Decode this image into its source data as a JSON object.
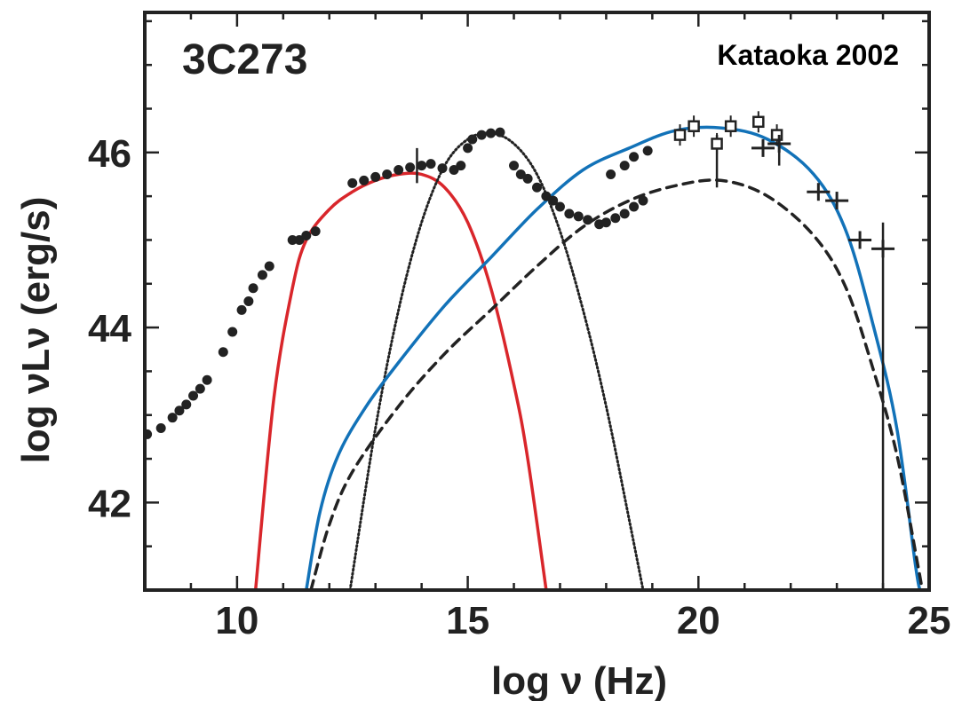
{
  "chart_data": {
    "type": "scatter",
    "title": "3C273",
    "annotation": "Kataoka 2002",
    "xlabel": "log ν (Hz)",
    "ylabel": "log νLν (erg/s)",
    "xlim": [
      8,
      25
    ],
    "ylim": [
      41,
      47.6
    ],
    "x_ticks": [
      10,
      15,
      20,
      25
    ],
    "y_ticks": [
      42,
      44,
      46
    ],
    "grid": false,
    "colors": {
      "red": "#d9262b",
      "blue": "#1272b8",
      "black": "#222222"
    },
    "series": [
      {
        "kind": "data",
        "marker": "filled-circle",
        "color": "#222222",
        "points": [
          [
            8.05,
            42.78
          ],
          [
            8.35,
            42.85
          ],
          [
            8.6,
            42.97
          ],
          [
            8.75,
            43.05
          ],
          [
            8.9,
            43.12
          ],
          [
            9.05,
            43.22
          ],
          [
            9.2,
            43.3
          ],
          [
            9.35,
            43.4
          ],
          [
            9.7,
            43.72
          ],
          [
            9.9,
            43.95
          ],
          [
            10.1,
            44.2
          ],
          [
            10.25,
            44.3
          ],
          [
            10.35,
            44.45
          ],
          [
            10.55,
            44.6
          ],
          [
            10.7,
            44.7
          ],
          [
            11.2,
            45.0
          ],
          [
            11.35,
            45.0
          ],
          [
            11.5,
            45.05
          ],
          [
            11.7,
            45.1
          ],
          [
            12.5,
            45.65
          ],
          [
            12.75,
            45.68
          ],
          [
            13.0,
            45.72
          ],
          [
            13.25,
            45.75
          ],
          [
            13.5,
            45.8
          ],
          [
            13.75,
            45.83
          ],
          [
            14.0,
            45.85
          ],
          [
            14.2,
            45.87
          ],
          [
            14.45,
            45.82
          ],
          [
            14.7,
            45.8
          ],
          [
            14.85,
            45.85
          ],
          [
            15.0,
            46.05
          ],
          [
            15.1,
            46.15
          ],
          [
            15.3,
            46.2
          ],
          [
            15.5,
            46.22
          ],
          [
            15.7,
            46.23
          ],
          [
            16.0,
            45.85
          ],
          [
            16.15,
            45.75
          ],
          [
            16.3,
            45.7
          ],
          [
            16.5,
            45.6
          ],
          [
            16.7,
            45.5
          ],
          [
            16.85,
            45.45
          ],
          [
            17.0,
            45.38
          ],
          [
            17.2,
            45.3
          ],
          [
            17.4,
            45.27
          ],
          [
            17.6,
            45.23
          ],
          [
            17.85,
            45.18
          ],
          [
            18.0,
            45.2
          ],
          [
            18.2,
            45.25
          ],
          [
            18.4,
            45.3
          ],
          [
            18.6,
            45.38
          ],
          [
            18.8,
            45.45
          ],
          [
            18.1,
            45.75
          ],
          [
            18.4,
            45.85
          ],
          [
            18.6,
            45.95
          ],
          [
            18.9,
            46.02
          ]
        ]
      },
      {
        "kind": "data-errorbars",
        "marker": "open-square",
        "color": "#222222",
        "points": [
          [
            19.6,
            46.2
          ],
          [
            19.9,
            46.3
          ],
          [
            20.4,
            46.1
          ],
          [
            20.7,
            46.3
          ],
          [
            21.3,
            46.35
          ],
          [
            21.7,
            46.2
          ]
        ]
      },
      {
        "kind": "data-errorbars",
        "marker": "cross",
        "color": "#222222",
        "points": [
          [
            21.4,
            46.05
          ],
          [
            21.75,
            46.1
          ],
          [
            22.6,
            45.55
          ],
          [
            23.0,
            45.45
          ],
          [
            23.5,
            45.0
          ],
          [
            24.0,
            44.9
          ]
        ]
      },
      {
        "kind": "model",
        "style": "solid",
        "color": "#d9262b",
        "points": [
          [
            10.4,
            41.0
          ],
          [
            10.8,
            43.2
          ],
          [
            11.2,
            44.45
          ],
          [
            11.5,
            45.0
          ],
          [
            12.0,
            45.35
          ],
          [
            12.5,
            45.55
          ],
          [
            13.0,
            45.68
          ],
          [
            13.5,
            45.75
          ],
          [
            14.0,
            45.75
          ],
          [
            14.5,
            45.6
          ],
          [
            15.0,
            45.2
          ],
          [
            15.5,
            44.45
          ],
          [
            16.0,
            43.35
          ],
          [
            16.3,
            42.5
          ],
          [
            16.7,
            41.0
          ]
        ]
      },
      {
        "kind": "model",
        "style": "dotted",
        "color": "#222222",
        "points": [
          [
            12.45,
            41.0
          ],
          [
            13.0,
            42.85
          ],
          [
            13.5,
            44.2
          ],
          [
            14.0,
            45.2
          ],
          [
            14.5,
            45.85
          ],
          [
            15.0,
            46.15
          ],
          [
            15.5,
            46.22
          ],
          [
            16.0,
            46.1
          ],
          [
            16.5,
            45.75
          ],
          [
            17.0,
            45.1
          ],
          [
            17.5,
            44.2
          ],
          [
            18.0,
            43.1
          ],
          [
            18.5,
            41.8
          ],
          [
            18.8,
            41.0
          ]
        ]
      },
      {
        "kind": "model",
        "style": "solid",
        "color": "#1272b8",
        "points": [
          [
            11.5,
            41.0
          ],
          [
            11.8,
            41.9
          ],
          [
            12.2,
            42.55
          ],
          [
            12.8,
            43.1
          ],
          [
            13.5,
            43.6
          ],
          [
            14.5,
            44.25
          ],
          [
            15.5,
            44.8
          ],
          [
            16.5,
            45.35
          ],
          [
            17.5,
            45.8
          ],
          [
            18.5,
            46.05
          ],
          [
            19.5,
            46.25
          ],
          [
            20.5,
            46.28
          ],
          [
            21.5,
            46.15
          ],
          [
            22.5,
            45.75
          ],
          [
            23.2,
            45.1
          ],
          [
            23.8,
            44.0
          ],
          [
            24.3,
            42.85
          ],
          [
            24.7,
            41.3
          ],
          [
            24.8,
            41.0
          ]
        ]
      },
      {
        "kind": "model",
        "style": "dashed",
        "color": "#222222",
        "points": [
          [
            11.6,
            41.0
          ],
          [
            12.0,
            41.75
          ],
          [
            12.5,
            42.35
          ],
          [
            13.5,
            43.1
          ],
          [
            14.5,
            43.7
          ],
          [
            15.5,
            44.2
          ],
          [
            16.5,
            44.7
          ],
          [
            17.5,
            45.15
          ],
          [
            18.5,
            45.45
          ],
          [
            19.5,
            45.62
          ],
          [
            20.5,
            45.68
          ],
          [
            21.5,
            45.5
          ],
          [
            22.5,
            45.05
          ],
          [
            23.2,
            44.45
          ],
          [
            23.8,
            43.5
          ],
          [
            24.3,
            42.55
          ],
          [
            24.75,
            41.3
          ],
          [
            24.85,
            41.0
          ]
        ]
      }
    ],
    "error_bars": [
      {
        "x": 13.9,
        "low": 45.65,
        "high": 46.05
      },
      {
        "x": 20.4,
        "low": 45.6,
        "high": 46.2
      },
      {
        "x": 21.75,
        "low": 45.85,
        "high": 46.25
      },
      {
        "x": 24.0,
        "low": 41.0,
        "high": 45.2
      }
    ]
  }
}
